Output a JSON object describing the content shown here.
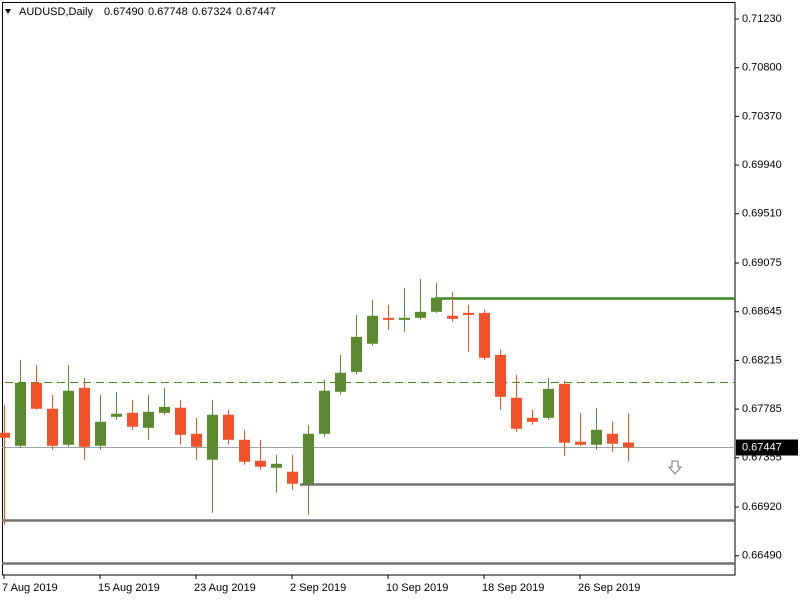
{
  "chart_data": {
    "type": "candlestick",
    "title": "AUDUSD,Daily",
    "header_prices": [
      "0.67490",
      "0.67748",
      "0.67324",
      "0.67447"
    ],
    "categories": [
      "7 Aug 2019",
      null,
      null,
      null,
      null,
      null,
      "15 Aug 2019",
      null,
      null,
      null,
      null,
      null,
      "23 Aug 2019",
      null,
      null,
      null,
      null,
      null,
      "2 Sep 2019",
      null,
      null,
      null,
      null,
      null,
      "10 Sep 2019",
      null,
      null,
      null,
      null,
      null,
      "18 Sep 2019",
      null,
      null,
      null,
      null,
      null,
      "26 Sep 2019",
      null,
      null,
      null
    ],
    "open": [
      0.67576,
      0.67461,
      0.68017,
      0.67788,
      0.6747,
      0.67973,
      0.67461,
      0.67717,
      0.67752,
      0.6762,
      0.67752,
      0.67797,
      0.67567,
      0.67338,
      0.67735,
      0.67514,
      0.67329,
      0.67267,
      0.67232,
      0.67126,
      0.67567,
      0.67938,
      0.68114,
      0.68362,
      0.68591,
      0.68573,
      0.68591,
      0.68644,
      0.68609,
      0.68635,
      0.68635,
      0.68264,
      0.67885,
      0.67708,
      0.67708,
      0.68008,
      0.67497,
      0.6747,
      0.67567,
      0.6749
    ],
    "high": [
      0.67823,
      0.6822,
      0.68176,
      0.67911,
      0.68176,
      0.68061,
      0.67911,
      0.67938,
      0.67867,
      0.67911,
      0.67973,
      0.67867,
      0.67708,
      0.67867,
      0.67779,
      0.67602,
      0.67514,
      0.67382,
      0.67382,
      0.67647,
      0.68044,
      0.68264,
      0.68617,
      0.6875,
      0.68706,
      0.68856,
      0.68935,
      0.689,
      0.6882,
      0.68706,
      0.68662,
      0.68309,
      0.68088,
      0.67779,
      0.68061,
      0.68035,
      0.67752,
      0.67797,
      0.67673,
      0.67748
    ],
    "low": [
      0.66764,
      0.67444,
      0.67779,
      0.67426,
      0.67452,
      0.67338,
      0.67426,
      0.67691,
      0.67602,
      0.67514,
      0.67735,
      0.6747,
      0.67338,
      0.6687,
      0.6747,
      0.67294,
      0.67249,
      0.67046,
      0.67073,
      0.66852,
      0.67541,
      0.67911,
      0.68088,
      0.68344,
      0.68485,
      0.68467,
      0.68573,
      0.68635,
      0.68556,
      0.68291,
      0.6822,
      0.67779,
      0.67585,
      0.67647,
      0.67691,
      0.67373,
      0.67461,
      0.67426,
      0.67408,
      0.67324
    ],
    "close": [
      0.67532,
      0.68017,
      0.67788,
      0.67461,
      0.67947,
      0.67452,
      0.67673,
      0.67744,
      0.67629,
      0.67761,
      0.67805,
      0.67558,
      0.67452,
      0.67735,
      0.67514,
      0.6732,
      0.67276,
      0.67302,
      0.67126,
      0.67567,
      0.67947,
      0.68106,
      0.68423,
      0.68609,
      0.68573,
      0.68591,
      0.68644,
      0.68768,
      0.68582,
      0.68617,
      0.68238,
      0.67894,
      0.67611,
      0.67673,
      0.67964,
      0.67488,
      0.6747,
      0.67602,
      0.67479,
      0.67447
    ],
    "up_color": "#5b8a2e",
    "down_color": "#f0532a",
    "ylim": [
      0.6632,
      0.7138
    ],
    "yticks": [
      {
        "value": 0.7123,
        "label": "0.71230"
      },
      {
        "value": 0.708,
        "label": "0.70800"
      },
      {
        "value": 0.7037,
        "label": "0.70370"
      },
      {
        "value": 0.6994,
        "label": "0.69940"
      },
      {
        "value": 0.6951,
        "label": "0.69510"
      },
      {
        "value": 0.69075,
        "label": "0.69075"
      },
      {
        "value": 0.68645,
        "label": "0.68645"
      },
      {
        "value": 0.68215,
        "label": "0.68215"
      },
      {
        "value": 0.67785,
        "label": "0.67785"
      },
      {
        "value": 0.67355,
        "label": "0.67355"
      },
      {
        "value": 0.6692,
        "label": "0.66920"
      },
      {
        "value": 0.6649,
        "label": "0.66490"
      }
    ],
    "levels": [
      {
        "value": 0.68768,
        "color": "#3a8a1e",
        "dashed": false
      },
      {
        "value": 0.68026,
        "color": "#3a8a1e",
        "dashed": true
      },
      {
        "value": 0.67126,
        "color": "#707070",
        "dashed": false
      },
      {
        "value": 0.66808,
        "color": "#707070",
        "dashed": false
      },
      {
        "value": 0.66428,
        "color": "#707070",
        "dashed": false
      }
    ]
  }
}
